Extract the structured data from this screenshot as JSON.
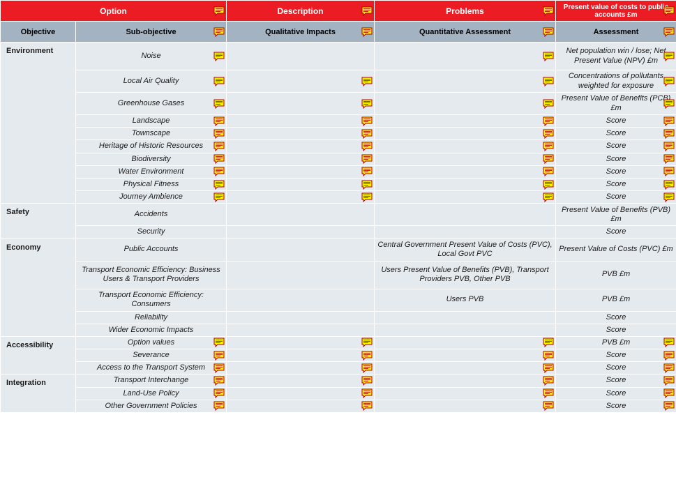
{
  "colors": {
    "header1_bg": "#ec1c24",
    "header1_fg": "#ffffff",
    "header2_bg": "#a4b3c2",
    "header2_fg": "#000000",
    "cell_bg": "#e5eaef",
    "border": "#ffffff",
    "note_fill": "#fff200",
    "note_stroke": "#b00000"
  },
  "header1": {
    "option": "Option",
    "description": "Description",
    "problems": "Problems",
    "pv_costs": "Present value of costs to public accounts £m"
  },
  "header2": {
    "objective": "Objective",
    "sub_objective": "Sub-objective",
    "qualitative": "Qualitative Impacts",
    "quantitative": "Quantitative Assessment",
    "assessment": "Assessment"
  },
  "groups": [
    {
      "objective": "Environment",
      "rows": [
        {
          "sub": "Noise",
          "qi": "",
          "qa": "",
          "ass": "Net population win / lose; Net Present Value (NPV) £m",
          "h": "tall",
          "notes": {
            "sub": true,
            "qi": false,
            "qa": true,
            "ass": true
          }
        },
        {
          "sub": "Local Air Quality",
          "qi": "",
          "qa": "",
          "ass": "Concentrations of pollutants weighted for exposure",
          "h": "med",
          "notes": {
            "sub": true,
            "qi": true,
            "qa": true,
            "ass": true
          }
        },
        {
          "sub": "Greenhouse Gases",
          "qi": "",
          "qa": "",
          "ass": "Present Value of Benefits (PCB) £m",
          "h": "med",
          "notes": {
            "sub": true,
            "qi": true,
            "qa": true,
            "ass": true
          }
        },
        {
          "sub": "Landscape",
          "qi": "",
          "qa": "",
          "ass": "Score",
          "h": "",
          "notes": {
            "sub": true,
            "qi": true,
            "qa": true,
            "ass": true
          }
        },
        {
          "sub": "Townscape",
          "qi": "",
          "qa": "",
          "ass": "Score",
          "h": "",
          "notes": {
            "sub": true,
            "qi": true,
            "qa": true,
            "ass": true
          }
        },
        {
          "sub": "Heritage of Historic Resources",
          "qi": "",
          "qa": "",
          "ass": "Score",
          "h": "",
          "notes": {
            "sub": true,
            "qi": true,
            "qa": true,
            "ass": true
          }
        },
        {
          "sub": "Biodiversity",
          "qi": "",
          "qa": "",
          "ass": "Score",
          "h": "",
          "notes": {
            "sub": true,
            "qi": true,
            "qa": true,
            "ass": true
          }
        },
        {
          "sub": "Water Environment",
          "qi": "",
          "qa": "",
          "ass": "Score",
          "h": "",
          "notes": {
            "sub": true,
            "qi": true,
            "qa": true,
            "ass": true
          }
        },
        {
          "sub": "Physical Fitness",
          "qi": "",
          "qa": "",
          "ass": "Score",
          "h": "",
          "notes": {
            "sub": true,
            "qi": true,
            "qa": true,
            "ass": true
          }
        },
        {
          "sub": "Journey Ambience",
          "qi": "",
          "qa": "",
          "ass": "Score",
          "h": "",
          "notes": {
            "sub": true,
            "qi": true,
            "qa": true,
            "ass": true
          }
        }
      ]
    },
    {
      "objective": "Safety",
      "rows": [
        {
          "sub": "Accidents",
          "qi": "",
          "qa": "",
          "ass": "Present Value of Benefits (PVB) £m",
          "h": "med",
          "notes": {
            "sub": false,
            "qi": false,
            "qa": false,
            "ass": false
          }
        },
        {
          "sub": "Security",
          "qi": "",
          "qa": "",
          "ass": "Score",
          "h": "",
          "notes": {
            "sub": false,
            "qi": false,
            "qa": false,
            "ass": false
          }
        }
      ]
    },
    {
      "objective": "Economy",
      "rows": [
        {
          "sub": "Public Accounts",
          "qi": "",
          "qa": "Central Government Present Value of Costs (PVC), Local Govt PVC",
          "ass": "Present Value of Costs (PVC) £m",
          "h": "med",
          "notes": {
            "sub": false,
            "qi": false,
            "qa": false,
            "ass": false
          }
        },
        {
          "sub": "Transport Economic Efficiency: Business Users & Transport Providers",
          "qi": "",
          "qa": "Users Present Value of Benefits (PVB), Transport Providers PVB, Other PVB",
          "ass": "PVB £m",
          "h": "tall",
          "notes": {
            "sub": false,
            "qi": false,
            "qa": false,
            "ass": false
          }
        },
        {
          "sub": "Transport Economic Efficiency: Consumers",
          "qi": "",
          "qa": "Users PVB",
          "ass": "PVB £m",
          "h": "med",
          "notes": {
            "sub": false,
            "qi": false,
            "qa": false,
            "ass": false
          }
        },
        {
          "sub": "Reliability",
          "qi": "",
          "qa": "",
          "ass": "Score",
          "h": "",
          "notes": {
            "sub": false,
            "qi": false,
            "qa": false,
            "ass": false
          }
        },
        {
          "sub": "Wider Economic Impacts",
          "qi": "",
          "qa": "",
          "ass": "Score",
          "h": "",
          "notes": {
            "sub": false,
            "qi": false,
            "qa": false,
            "ass": false
          }
        }
      ]
    },
    {
      "objective": "Accessibility",
      "rows": [
        {
          "sub": "Option values",
          "qi": "",
          "qa": "",
          "ass": "PVB £m",
          "h": "",
          "notes": {
            "sub": true,
            "qi": true,
            "qa": true,
            "ass": true
          }
        },
        {
          "sub": "Severance",
          "qi": "",
          "qa": "",
          "ass": "Score",
          "h": "",
          "notes": {
            "sub": true,
            "qi": true,
            "qa": true,
            "ass": true
          }
        },
        {
          "sub": "Access to the Transport System",
          "qi": "",
          "qa": "",
          "ass": "Score",
          "h": "",
          "notes": {
            "sub": true,
            "qi": true,
            "qa": true,
            "ass": true
          }
        }
      ]
    },
    {
      "objective": "Integration",
      "rows": [
        {
          "sub": "Transport Interchange",
          "qi": "",
          "qa": "",
          "ass": "Score",
          "h": "",
          "notes": {
            "sub": true,
            "qi": true,
            "qa": true,
            "ass": true
          }
        },
        {
          "sub": "Land-Use Policy",
          "qi": "",
          "qa": "",
          "ass": "Score",
          "h": "",
          "notes": {
            "sub": true,
            "qi": true,
            "qa": true,
            "ass": true
          }
        },
        {
          "sub": "Other Government Policies",
          "qi": "",
          "qa": "",
          "ass": "Score",
          "h": "",
          "notes": {
            "sub": true,
            "qi": true,
            "qa": true,
            "ass": true
          }
        }
      ]
    }
  ]
}
